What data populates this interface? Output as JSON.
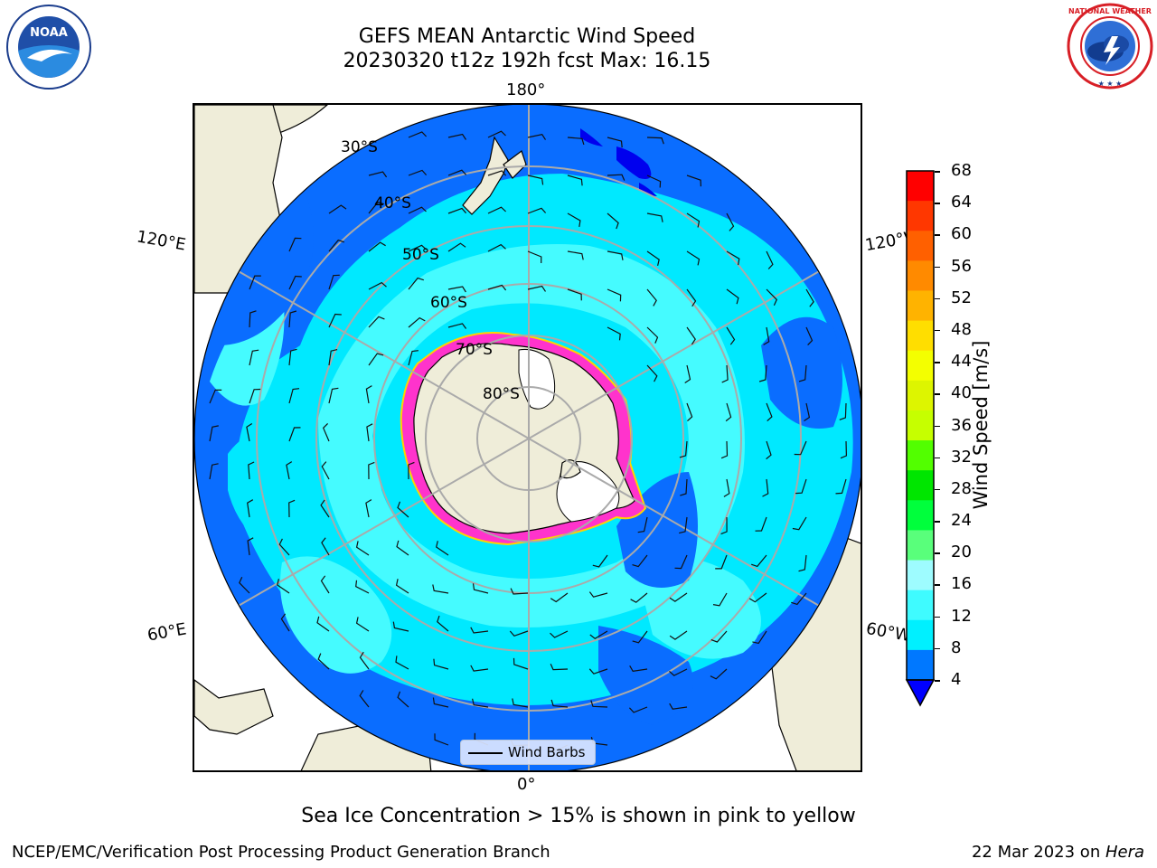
{
  "header": {
    "title_line1": "GEFS MEAN Antarctic Wind Speed",
    "title_line2": "20230320 t12z 192h fcst   Max: 16.15"
  },
  "logos": {
    "left": {
      "name": "noaa-logo",
      "text": "NOAA",
      "ring_text": "NATIONAL OCEANIC AND ATMOSPHERIC ADMINISTRATION · U.S. DEPARTMENT OF COMMERCE"
    },
    "right": {
      "name": "nws-logo",
      "ring_text": "NATIONAL WEATHER SERVICE"
    }
  },
  "map": {
    "lon_labels": {
      "top": "180°",
      "bottom": "0°",
      "left_upper": "120°E",
      "left_lower": "60°E",
      "right_upper": "120°W",
      "right_lower": "60°W"
    },
    "lat_labels": [
      "30°S",
      "40°S",
      "50°S",
      "60°S",
      "70°S",
      "80°S"
    ],
    "legend": "Wind Barbs",
    "colors": {
      "land": "#efedd9",
      "ocean_low": "#0a6dff",
      "ocean_mid": "#00e9ff",
      "ocean_high": "#45fbff",
      "sea_ice_edge": "#ff33cc",
      "ice_interior": "#ffffff"
    }
  },
  "colorbar": {
    "label": "Wind Speed [m/s]",
    "ticks": [
      "68",
      "64",
      "60",
      "56",
      "52",
      "48",
      "44",
      "40",
      "36",
      "32",
      "28",
      "24",
      "20",
      "16",
      "12",
      "8",
      "4"
    ],
    "colors": [
      "#ff0000",
      "#ff3700",
      "#ff6000",
      "#ff8a00",
      "#ffb300",
      "#ffde00",
      "#f4ff00",
      "#ddf500",
      "#c6ff00",
      "#52ff00",
      "#00e600",
      "#00ff3c",
      "#59ff7b",
      "#9efcff",
      "#3ffbff",
      "#00f0ff",
      "#0078ff"
    ],
    "underflow_color": "#0000ff"
  },
  "subtitle": "Sea Ice Concentration > 15% is shown in pink to yellow",
  "footer": {
    "left": "NCEP/EMC/Verification Post Processing Product Generation Branch",
    "right_date": "22 Mar 2023 on ",
    "right_host": "Hera"
  }
}
